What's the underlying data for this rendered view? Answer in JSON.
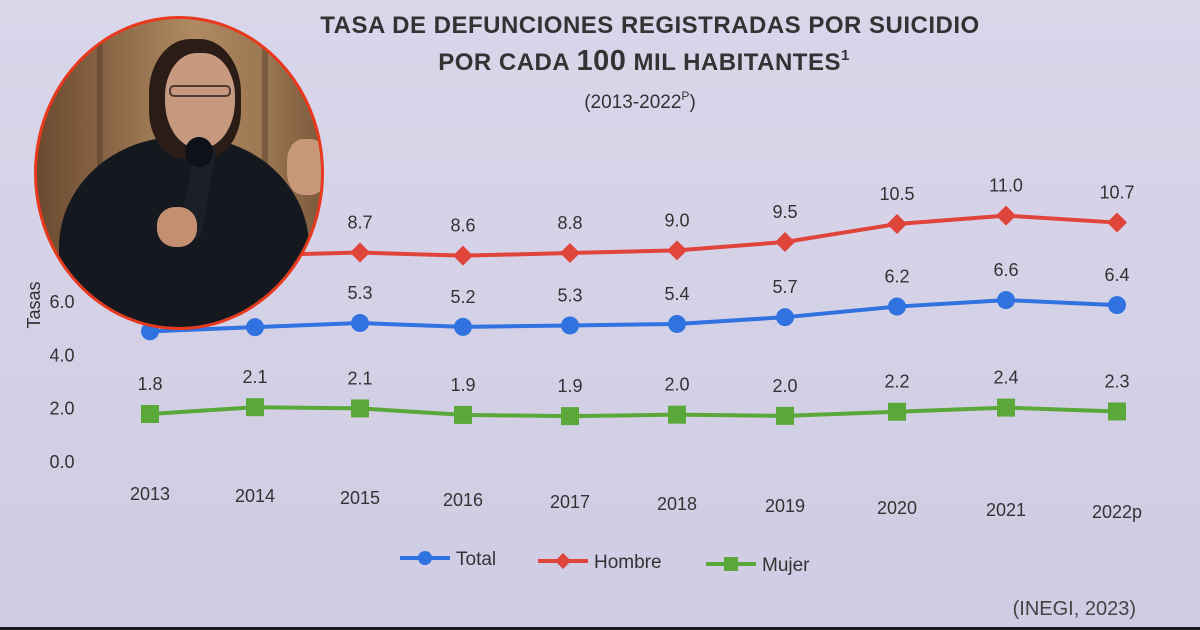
{
  "chart_data": {
    "type": "line",
    "title": "TASA DE DEFUNCIONES REGISTRADAS POR SUICIDIO",
    "title_line2_prefix": "POR CADA ",
    "title_line2_number": "100",
    "title_line2_suffix": " MIL HABITANTES",
    "title_footnote": "1",
    "subtitle": "(2013-2022",
    "subtitle_sup": "P",
    "subtitle_end": ")",
    "ylabel": "Tasas",
    "yticks": [
      "0.0",
      "2.0",
      "4.0",
      "6.0"
    ],
    "ytick_values": [
      0,
      2,
      4,
      6
    ],
    "categories": [
      "2013",
      "2014",
      "2015",
      "2016",
      "2017",
      "2018",
      "2019",
      "2020",
      "2021",
      "2022p"
    ],
    "series": [
      {
        "name": "Total",
        "color": "#2f72e0",
        "marker": "circle",
        "values": [
          4.9,
          5.1,
          5.3,
          5.2,
          5.3,
          5.4,
          5.7,
          6.2,
          6.6,
          6.4
        ],
        "labels": [
          null,
          null,
          "5.3",
          "5.2",
          "5.3",
          "5.4",
          "5.7",
          "6.2",
          "6.6",
          "6.4"
        ]
      },
      {
        "name": "Hombre",
        "color": "#e0453c",
        "marker": "diamond",
        "values": [
          8.0,
          8.5,
          8.7,
          8.6,
          8.8,
          9.0,
          9.5,
          10.5,
          11.0,
          10.7
        ],
        "labels": [
          null,
          null,
          "8.7",
          "8.6",
          "8.8",
          "9.0",
          "9.5",
          "10.5",
          "11.0",
          "10.7"
        ]
      },
      {
        "name": "Mujer",
        "color": "#5aa83a",
        "marker": "square",
        "values": [
          1.8,
          2.1,
          2.1,
          1.9,
          1.9,
          2.0,
          2.0,
          2.2,
          2.4,
          2.3
        ],
        "labels": [
          "1.8",
          "2.1",
          "2.1",
          "1.9",
          "1.9",
          "2.0",
          "2.0",
          "2.2",
          "2.4",
          "2.3"
        ]
      }
    ],
    "legend_position": "bottom",
    "grid": false
  },
  "source": "(INEGI, 2023)",
  "inset_photo": "speaker-photo"
}
